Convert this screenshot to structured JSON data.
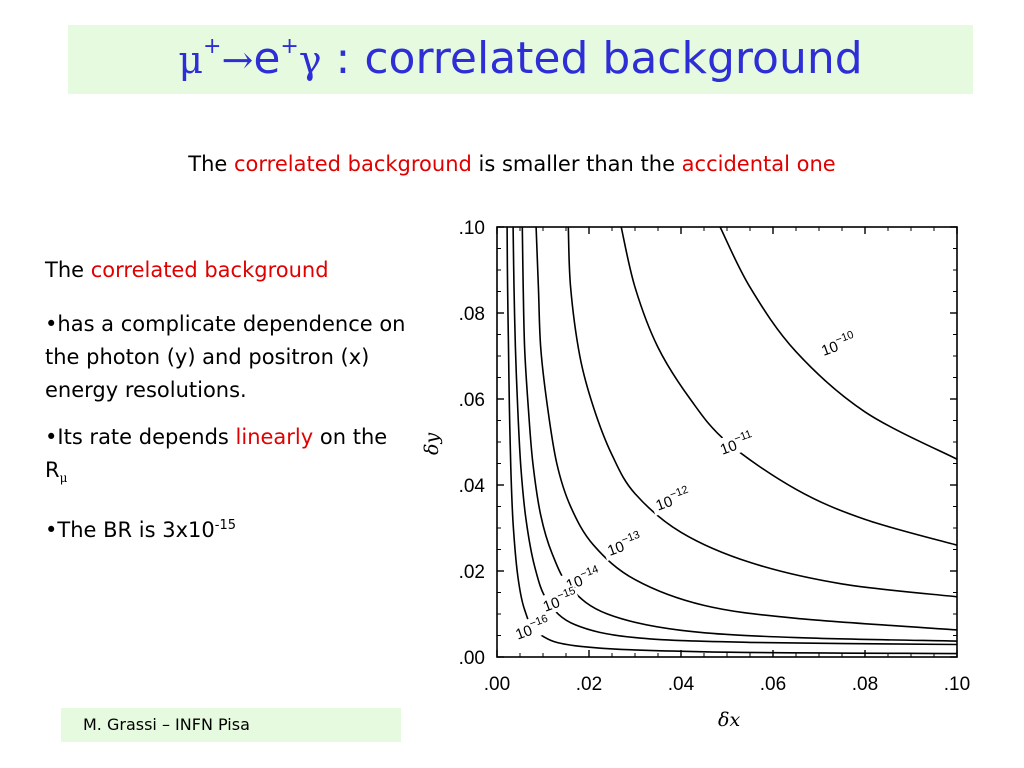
{
  "slide": {
    "title": {
      "mu": "μ",
      "plus1": "+",
      "arrow": "→",
      "e": "e",
      "plus2": "+",
      "gamma": "γ",
      "rest": " : correlated background"
    },
    "subtitle": {
      "part1": "The ",
      "part2": "correlated background",
      "part3": " is smaller than the ",
      "part4": "accidental one"
    },
    "left": {
      "para1_a": "The ",
      "para1_b": "correlated background",
      "bullet1": "•has a complicate dependence on the photon (y) and positron (x) energy resolutions.",
      "bullet2_a": "•Its rate depends ",
      "bullet2_b": "linearly",
      "bullet2_c": " on the R",
      "bullet2_sub": "μ",
      "bullet3_a": "•The BR is 3x10",
      "bullet3_sup": "-15"
    },
    "footer": "M. Grassi – INFN Pisa",
    "colors": {
      "title": "#2e2ed6",
      "highlight": "#e00000",
      "box": "#e6fae0"
    }
  },
  "chart_data": {
    "type": "line",
    "xlabel": "δx",
    "ylabel": "δy",
    "xlim": [
      0,
      0.1
    ],
    "ylim": [
      0,
      0.1
    ],
    "x_ticks": [
      ".00",
      ".02",
      ".04",
      ".06",
      ".08",
      ".10"
    ],
    "y_ticks": [
      ".00",
      ".02",
      ".04",
      ".06",
      ".08",
      ".10"
    ],
    "grid": false,
    "series": [
      {
        "label_base": "10",
        "label_exp": "−10",
        "points": [
          [
            0.0485,
            0.1
          ],
          [
            0.055,
            0.086
          ],
          [
            0.065,
            0.071
          ],
          [
            0.08,
            0.057
          ],
          [
            0.1,
            0.046
          ]
        ]
      },
      {
        "label_base": "10",
        "label_exp": "−11",
        "points": [
          [
            0.027,
            0.1
          ],
          [
            0.03,
            0.086
          ],
          [
            0.035,
            0.072
          ],
          [
            0.042,
            0.06
          ],
          [
            0.05,
            0.05
          ],
          [
            0.065,
            0.039
          ],
          [
            0.08,
            0.032
          ],
          [
            0.1,
            0.026
          ]
        ]
      },
      {
        "label_base": "10",
        "label_exp": "−12",
        "points": [
          [
            0.0155,
            0.1
          ],
          [
            0.016,
            0.086
          ],
          [
            0.018,
            0.07
          ],
          [
            0.021,
            0.058
          ],
          [
            0.025,
            0.047
          ],
          [
            0.03,
            0.038
          ],
          [
            0.04,
            0.029
          ],
          [
            0.055,
            0.022
          ],
          [
            0.075,
            0.017
          ],
          [
            0.1,
            0.014
          ]
        ]
      },
      {
        "label_base": "10",
        "label_exp": "−13",
        "points": [
          [
            0.0085,
            0.1
          ],
          [
            0.009,
            0.086
          ],
          [
            0.0095,
            0.072
          ],
          [
            0.011,
            0.058
          ],
          [
            0.013,
            0.045
          ],
          [
            0.016,
            0.035
          ],
          [
            0.021,
            0.026
          ],
          [
            0.03,
            0.018
          ],
          [
            0.045,
            0.012
          ],
          [
            0.065,
            0.009
          ],
          [
            0.1,
            0.0063
          ]
        ]
      },
      {
        "label_base": "10",
        "label_exp": "−14",
        "points": [
          [
            0.0055,
            0.1
          ],
          [
            0.0057,
            0.086
          ],
          [
            0.006,
            0.072
          ],
          [
            0.0068,
            0.058
          ],
          [
            0.0078,
            0.045
          ],
          [
            0.0095,
            0.033
          ],
          [
            0.012,
            0.024
          ],
          [
            0.016,
            0.016
          ],
          [
            0.024,
            0.01
          ],
          [
            0.04,
            0.0062
          ],
          [
            0.065,
            0.0045
          ],
          [
            0.1,
            0.0037
          ]
        ]
      },
      {
        "label_base": "10",
        "label_exp": "−15",
        "points": [
          [
            0.0035,
            0.1
          ],
          [
            0.0037,
            0.086
          ],
          [
            0.004,
            0.072
          ],
          [
            0.0045,
            0.058
          ],
          [
            0.0052,
            0.044
          ],
          [
            0.0063,
            0.032
          ],
          [
            0.0082,
            0.021
          ],
          [
            0.011,
            0.013
          ],
          [
            0.017,
            0.0075
          ],
          [
            0.03,
            0.0045
          ],
          [
            0.055,
            0.0034
          ],
          [
            0.1,
            0.0029
          ]
        ]
      },
      {
        "label_base": "10",
        "label_exp": "−16",
        "points": [
          [
            0.0022,
            0.1
          ],
          [
            0.0023,
            0.086
          ],
          [
            0.0025,
            0.072
          ],
          [
            0.0027,
            0.058
          ],
          [
            0.003,
            0.044
          ],
          [
            0.0035,
            0.031
          ],
          [
            0.0045,
            0.019
          ],
          [
            0.006,
            0.011
          ],
          [
            0.009,
            0.0055
          ],
          [
            0.018,
            0.0025
          ],
          [
            0.045,
            0.0012
          ],
          [
            0.1,
            0.0008
          ]
        ]
      }
    ],
    "contour_labels": [
      {
        "text_base": "10",
        "text_exp": "−10",
        "x": 0.071,
        "y": 0.07
      },
      {
        "text_base": "10",
        "text_exp": "−11",
        "x": 0.049,
        "y": 0.047
      },
      {
        "text_base": "10",
        "text_exp": "−12",
        "x": 0.035,
        "y": 0.034
      },
      {
        "text_base": "10",
        "text_exp": "−13",
        "x": 0.0245,
        "y": 0.0235
      },
      {
        "text_base": "10",
        "text_exp": "−14",
        "x": 0.0155,
        "y": 0.0155
      },
      {
        "text_base": "10",
        "text_exp": "−15",
        "x": 0.0105,
        "y": 0.0105
      },
      {
        "text_base": "10",
        "text_exp": "−16",
        "x": 0.0045,
        "y": 0.004
      }
    ]
  }
}
